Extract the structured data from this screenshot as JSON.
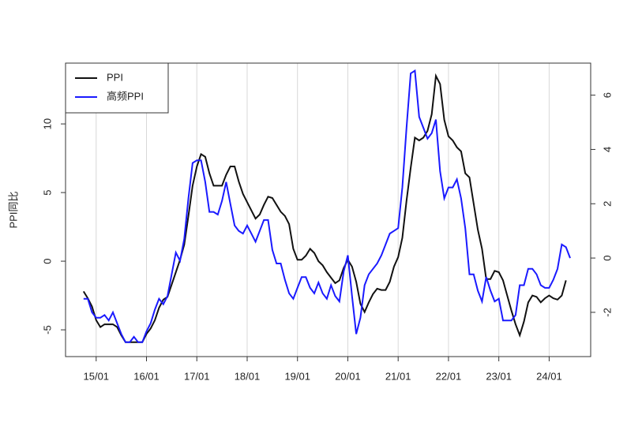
{
  "chart_data": {
    "type": "line",
    "y_label": "PPI同比",
    "x": [
      "14/10",
      "14/11",
      "14/12",
      "15/01",
      "15/02",
      "15/03",
      "15/04",
      "15/05",
      "15/06",
      "15/07",
      "15/08",
      "15/09",
      "15/10",
      "15/11",
      "15/12",
      "16/01",
      "16/02",
      "16/03",
      "16/04",
      "16/05",
      "16/06",
      "16/07",
      "16/08",
      "16/09",
      "16/10",
      "16/11",
      "16/12",
      "17/01",
      "17/02",
      "17/03",
      "17/04",
      "17/05",
      "17/06",
      "17/07",
      "17/08",
      "17/09",
      "17/10",
      "17/11",
      "17/12",
      "18/01",
      "18/02",
      "18/03",
      "18/04",
      "18/05",
      "18/06",
      "18/07",
      "18/08",
      "18/09",
      "18/10",
      "18/11",
      "18/12",
      "19/01",
      "19/02",
      "19/03",
      "19/04",
      "19/05",
      "19/06",
      "19/07",
      "19/08",
      "19/09",
      "19/10",
      "19/11",
      "19/12",
      "20/01",
      "20/02",
      "20/03",
      "20/04",
      "20/05",
      "20/06",
      "20/07",
      "20/08",
      "20/09",
      "20/10",
      "20/11",
      "20/12",
      "21/01",
      "21/02",
      "21/03",
      "21/04",
      "21/05",
      "21/06",
      "21/07",
      "21/08",
      "21/09",
      "21/10",
      "21/11",
      "21/12",
      "22/01",
      "22/02",
      "22/03",
      "22/04",
      "22/05",
      "22/06",
      "22/07",
      "22/08",
      "22/09",
      "22/10",
      "22/11",
      "22/12",
      "23/01",
      "23/02",
      "23/03",
      "23/04",
      "23/05",
      "23/06",
      "23/07",
      "23/08",
      "23/09",
      "23/10",
      "23/11",
      "23/12",
      "24/01",
      "24/02",
      "24/03",
      "24/04",
      "24/05",
      "24/06"
    ],
    "xticks": [
      "15/01",
      "16/01",
      "17/01",
      "18/01",
      "19/01",
      "20/01",
      "21/01",
      "22/01",
      "23/01",
      "24/01"
    ],
    "ylim": [
      -6.95,
      14.43
    ],
    "yticks": [
      -5,
      0,
      5,
      10
    ],
    "y2lim": [
      -3.63,
      7.18
    ],
    "y2ticks": [
      -2,
      0,
      2,
      4,
      6
    ],
    "grid": true,
    "legend": "top-left",
    "series": [
      {
        "name": "PPI",
        "color": "#111111",
        "axis": "y",
        "values": [
          -2.2,
          -2.7,
          -3.3,
          -4.3,
          -4.8,
          -4.6,
          -4.6,
          -4.6,
          -4.8,
          -5.4,
          -5.9,
          -5.9,
          -5.9,
          -5.9,
          -5.9,
          -5.3,
          -4.9,
          -4.3,
          -3.4,
          -2.8,
          -2.6,
          -1.7,
          -0.8,
          0.1,
          1.2,
          3.3,
          5.5,
          6.9,
          7.8,
          7.6,
          6.4,
          5.5,
          5.5,
          5.5,
          6.3,
          6.9,
          6.9,
          5.8,
          4.9,
          4.3,
          3.7,
          3.1,
          3.4,
          4.1,
          4.7,
          4.6,
          4.1,
          3.6,
          3.3,
          2.7,
          0.9,
          0.1,
          0.1,
          0.4,
          0.9,
          0.6,
          0,
          -0.3,
          -0.8,
          -1.2,
          -1.6,
          -1.4,
          -0.5,
          0.1,
          -0.4,
          -1.5,
          -3.1,
          -3.7,
          -3,
          -2.4,
          -2,
          -2.1,
          -2.1,
          -1.5,
          -0.4,
          0.3,
          1.7,
          4.4,
          6.8,
          9,
          8.8,
          9,
          9.5,
          10.7,
          13.5,
          12.9,
          10.3,
          9.1,
          8.8,
          8.3,
          8,
          6.4,
          6.1,
          4.2,
          2.3,
          0.9,
          -1.3,
          -1.3,
          -0.7,
          -0.8,
          -1.4,
          -2.5,
          -3.6,
          -4.6,
          -5.4,
          -4.4,
          -3,
          -2.5,
          -2.6,
          -3,
          -2.7,
          -2.5,
          -2.7,
          -2.8,
          -2.5,
          -1.4,
          null
        ]
      },
      {
        "name": "高频PPI",
        "color": "#1a1aff",
        "axis": "y2",
        "values": [
          -1.5,
          -1.5,
          -2,
          -2.2,
          -2.2,
          -2.1,
          -2.3,
          -2.0,
          -2.4,
          -2.8,
          -3.1,
          -3.1,
          -2.9,
          -3.1,
          -3.1,
          -2.7,
          -2.4,
          -1.9,
          -1.5,
          -1.7,
          -1.4,
          -0.6,
          0.2,
          -0.1,
          0.7,
          2.2,
          3.5,
          3.6,
          3.6,
          2.8,
          1.7,
          1.7,
          1.6,
          2.1,
          2.8,
          2.0,
          1.2,
          1.0,
          0.9,
          1.2,
          0.9,
          0.6,
          1.0,
          1.4,
          1.4,
          0.3,
          -0.2,
          -0.2,
          -0.8,
          -1.3,
          -1.5,
          -1.1,
          -0.7,
          -0.7,
          -1.1,
          -1.3,
          -0.9,
          -1.3,
          -1.5,
          -1.0,
          -1.4,
          -1.6,
          -0.5,
          0.1,
          -1.4,
          -2.8,
          -2.2,
          -1.0,
          -0.6,
          -0.4,
          -0.2,
          0.1,
          0.5,
          0.9,
          1.0,
          1.1,
          2.6,
          4.8,
          6.8,
          6.9,
          5.2,
          4.8,
          4.4,
          4.6,
          5.1,
          3.2,
          2.2,
          2.6,
          2.6,
          2.9,
          2.2,
          1.1,
          -0.6,
          -0.6,
          -1.2,
          -1.6,
          -0.7,
          -1.2,
          -1.6,
          -1.5,
          -2.3,
          -2.3,
          -2.3,
          -2.1,
          -1.0,
          -1.0,
          -0.4,
          -0.4,
          -0.6,
          -1.0,
          -1.1,
          -1.1,
          -0.8,
          -0.4,
          0.5,
          0.4,
          0.0
        ]
      }
    ]
  }
}
